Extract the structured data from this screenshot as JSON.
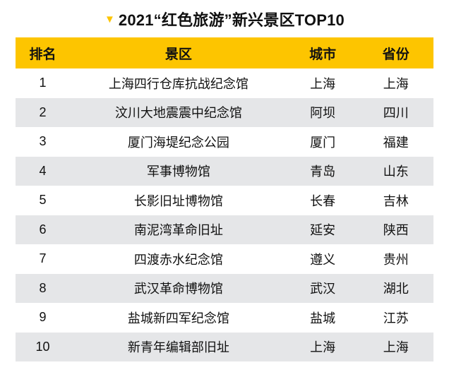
{
  "title": {
    "marker_icon": "triangle-down",
    "text": "2021“红色旅游”新兴景区TOP10"
  },
  "colors": {
    "accent_yellow": "#FDC500",
    "row_alt_gray": "#E5E6E8",
    "text_black": "#111111",
    "page_bg": "#FFFFFF"
  },
  "chart_data": {
    "type": "table",
    "title": "2021“红色旅游”新兴景区TOP10",
    "columns": [
      "排名",
      "景区",
      "城市",
      "省份"
    ],
    "column_keys": [
      "rank",
      "scenic-spot",
      "city",
      "province"
    ],
    "rows": [
      [
        "1",
        "上海四行仓库抗战纪念馆",
        "上海",
        "上海"
      ],
      [
        "2",
        "汶川大地震震中纪念馆",
        "阿坝",
        "四川"
      ],
      [
        "3",
        "厦门海堤纪念公园",
        "厦门",
        "福建"
      ],
      [
        "4",
        "军事博物馆",
        "青岛",
        "山东"
      ],
      [
        "5",
        "长影旧址博物馆",
        "长春",
        "吉林"
      ],
      [
        "6",
        "南泥湾革命旧址",
        "延安",
        "陕西"
      ],
      [
        "7",
        "四渡赤水纪念馆",
        "遵义",
        "贵州"
      ],
      [
        "8",
        "武汉革命博物馆",
        "武汉",
        "湖北"
      ],
      [
        "9",
        "盐城新四军纪念馆",
        "盐城",
        "江苏"
      ],
      [
        "10",
        "新青年编辑部旧址",
        "上海",
        "上海"
      ]
    ],
    "layout": {
      "header_bg": "#FDC500",
      "zebra_striping": "odd rows white, even rows light gray",
      "all_columns_centered": true,
      "column_width_pct": [
        13,
        52,
        17,
        18
      ],
      "legend": "none",
      "grid": "none"
    }
  }
}
